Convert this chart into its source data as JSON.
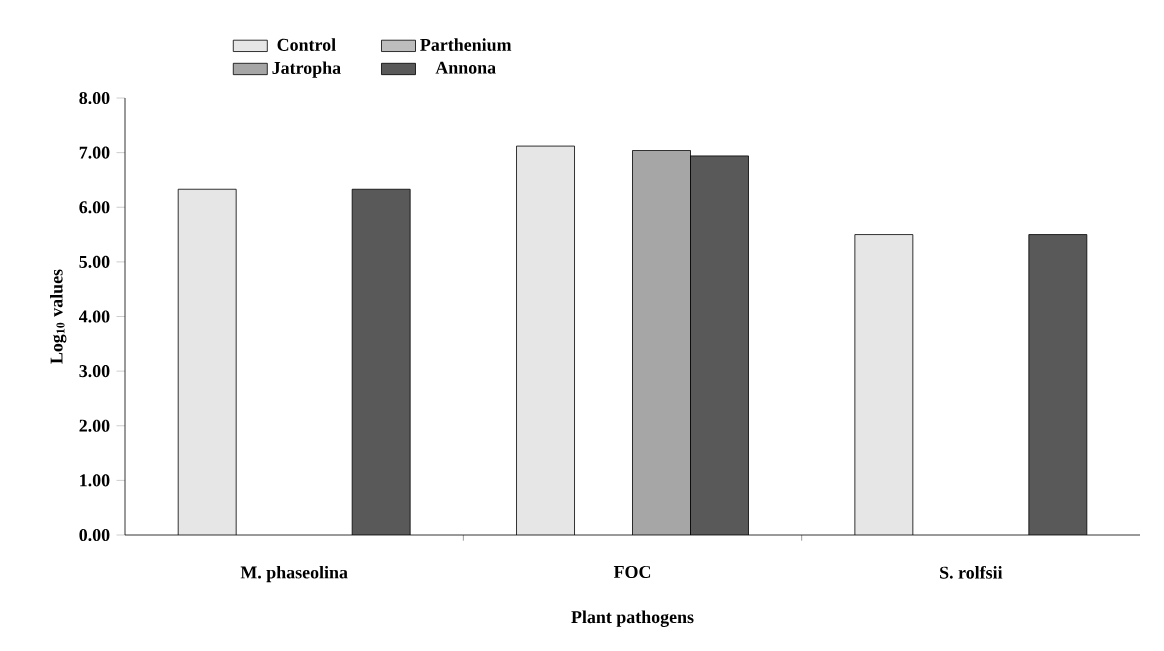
{
  "chart_data": {
    "type": "bar",
    "xlabel": "Plant pathogens",
    "ylabel": "Log$_{10}$ values",
    "categories": [
      "M. phaseolina",
      "FOC",
      "S. rolfsii"
    ],
    "series": [
      {
        "name": "Control",
        "color": "#e6e6e6",
        "values": [
          6.33,
          7.12,
          5.5
        ]
      },
      {
        "name": "Parthenium",
        "color": "#bdbdbd",
        "values": [
          null,
          null,
          null
        ]
      },
      {
        "name": "Jatropha",
        "color": "#a6a6a6",
        "values": [
          null,
          7.04,
          null
        ]
      },
      {
        "name": "Annona",
        "color": "#595959",
        "values": [
          6.33,
          6.94,
          5.5
        ]
      }
    ],
    "ylim": [
      0,
      8
    ],
    "yticks": [
      {
        "value": 0,
        "label": "0.00"
      },
      {
        "value": 1,
        "label": "1.00"
      },
      {
        "value": 2,
        "label": "2.00"
      },
      {
        "value": 3,
        "label": "3.00"
      },
      {
        "value": 4,
        "label": "4.00"
      },
      {
        "value": 5,
        "label": "5.00"
      },
      {
        "value": 6,
        "label": "6.00"
      },
      {
        "value": 7,
        "label": "7.00"
      },
      {
        "value": 8,
        "label": "8.00"
      }
    ],
    "legend": "top",
    "grid": false
  }
}
